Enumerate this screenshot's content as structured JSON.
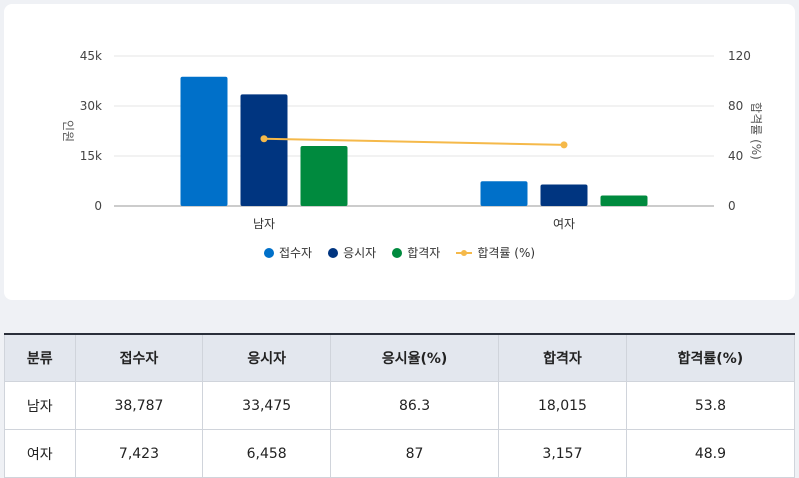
{
  "chart_data": {
    "type": "bar",
    "categories": [
      "남자",
      "여자"
    ],
    "series": [
      {
        "name": "접수자",
        "type": "bar",
        "axis": "left",
        "color": "#0070c9",
        "values": [
          38787,
          7423
        ]
      },
      {
        "name": "응시자",
        "type": "bar",
        "axis": "left",
        "color": "#003580",
        "values": [
          33475,
          6458
        ]
      },
      {
        "name": "합격자",
        "type": "bar",
        "axis": "left",
        "color": "#008a3e",
        "values": [
          18015,
          3157
        ]
      },
      {
        "name": "합격률 (%)",
        "type": "line",
        "axis": "right",
        "color": "#f5b94a",
        "values": [
          53.8,
          48.9
        ]
      }
    ],
    "ylabel": "인원",
    "y2label": "합격률 (%)",
    "ylim": [
      0,
      45000
    ],
    "y2lim": [
      0,
      120
    ],
    "yticks": [
      "0",
      "15k",
      "30k",
      "45k"
    ],
    "y2ticks": [
      "0",
      "40",
      "80",
      "120"
    ],
    "legend": "bottom",
    "grid": true
  },
  "table": {
    "headers": [
      "분류",
      "접수자",
      "응시자",
      "응시율(%)",
      "합격자",
      "합격률(%)"
    ],
    "rows": [
      [
        "남자",
        "38,787",
        "33,475",
        "86.3",
        "18,015",
        "53.8"
      ],
      [
        "여자",
        "7,423",
        "6,458",
        "87",
        "3,157",
        "48.9"
      ]
    ]
  }
}
